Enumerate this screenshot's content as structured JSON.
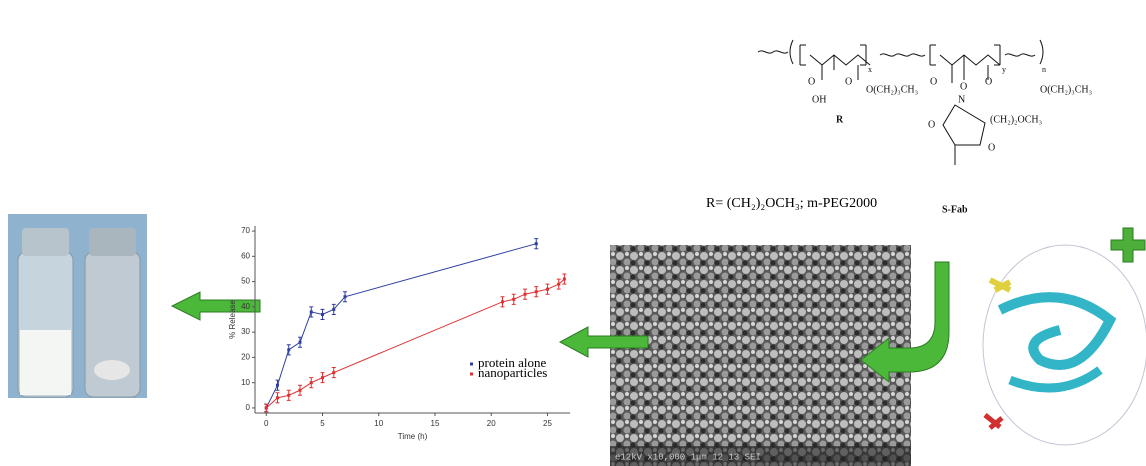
{
  "chart_data": {
    "type": "line",
    "xlabel": "Time (h)",
    "ylabel": "% Release",
    "xlim": [
      -1,
      27
    ],
    "ylim": [
      -2,
      72
    ],
    "xticks": [
      0,
      5,
      10,
      15,
      20,
      25
    ],
    "yticks": [
      0,
      10,
      20,
      30,
      40,
      50,
      60,
      70
    ],
    "legend": "lower right",
    "series": [
      {
        "name": "protein alone",
        "color": "#2e3fa0",
        "x": [
          0,
          1,
          2,
          3,
          4,
          5,
          6,
          7,
          24
        ],
        "values": [
          0,
          9,
          23,
          26,
          38,
          37,
          39,
          44,
          65
        ],
        "errors": [
          1.5,
          2,
          2,
          2,
          2,
          2,
          2,
          2,
          2
        ]
      },
      {
        "name": "nanoparticles",
        "color": "#e03030",
        "x": [
          0,
          1,
          2,
          3,
          4,
          5,
          6,
          21,
          22,
          23,
          24,
          25,
          26,
          26.5
        ],
        "values": [
          0,
          4,
          5,
          7,
          10,
          12,
          14,
          42,
          43,
          45,
          46,
          47,
          49,
          51
        ],
        "errors": [
          1.5,
          2,
          2,
          2,
          2,
          2,
          2,
          2,
          2,
          2,
          2,
          2,
          2,
          2
        ]
      }
    ]
  },
  "structure": {
    "oh": "OH",
    "o1": "O",
    "o2": "O",
    "r": "R",
    "side1": "O(CH₂)₃CH₃",
    "side2": "O(CH₂)₃CH₃",
    "side3": "(CH₂)₂OCH₃",
    "x": "x",
    "y": "y",
    "n": "n",
    "n_atom": "N",
    "o3": "O",
    "o4": "O",
    "o5": "O",
    "o6": "O",
    "o7": "O",
    "fab": "S-Fab"
  },
  "r_definition": "R= (CH₂)₂OCH₃; m-PEG2000",
  "sem_caption": "e12kV  x10,000  1μm  12 13 SEI"
}
